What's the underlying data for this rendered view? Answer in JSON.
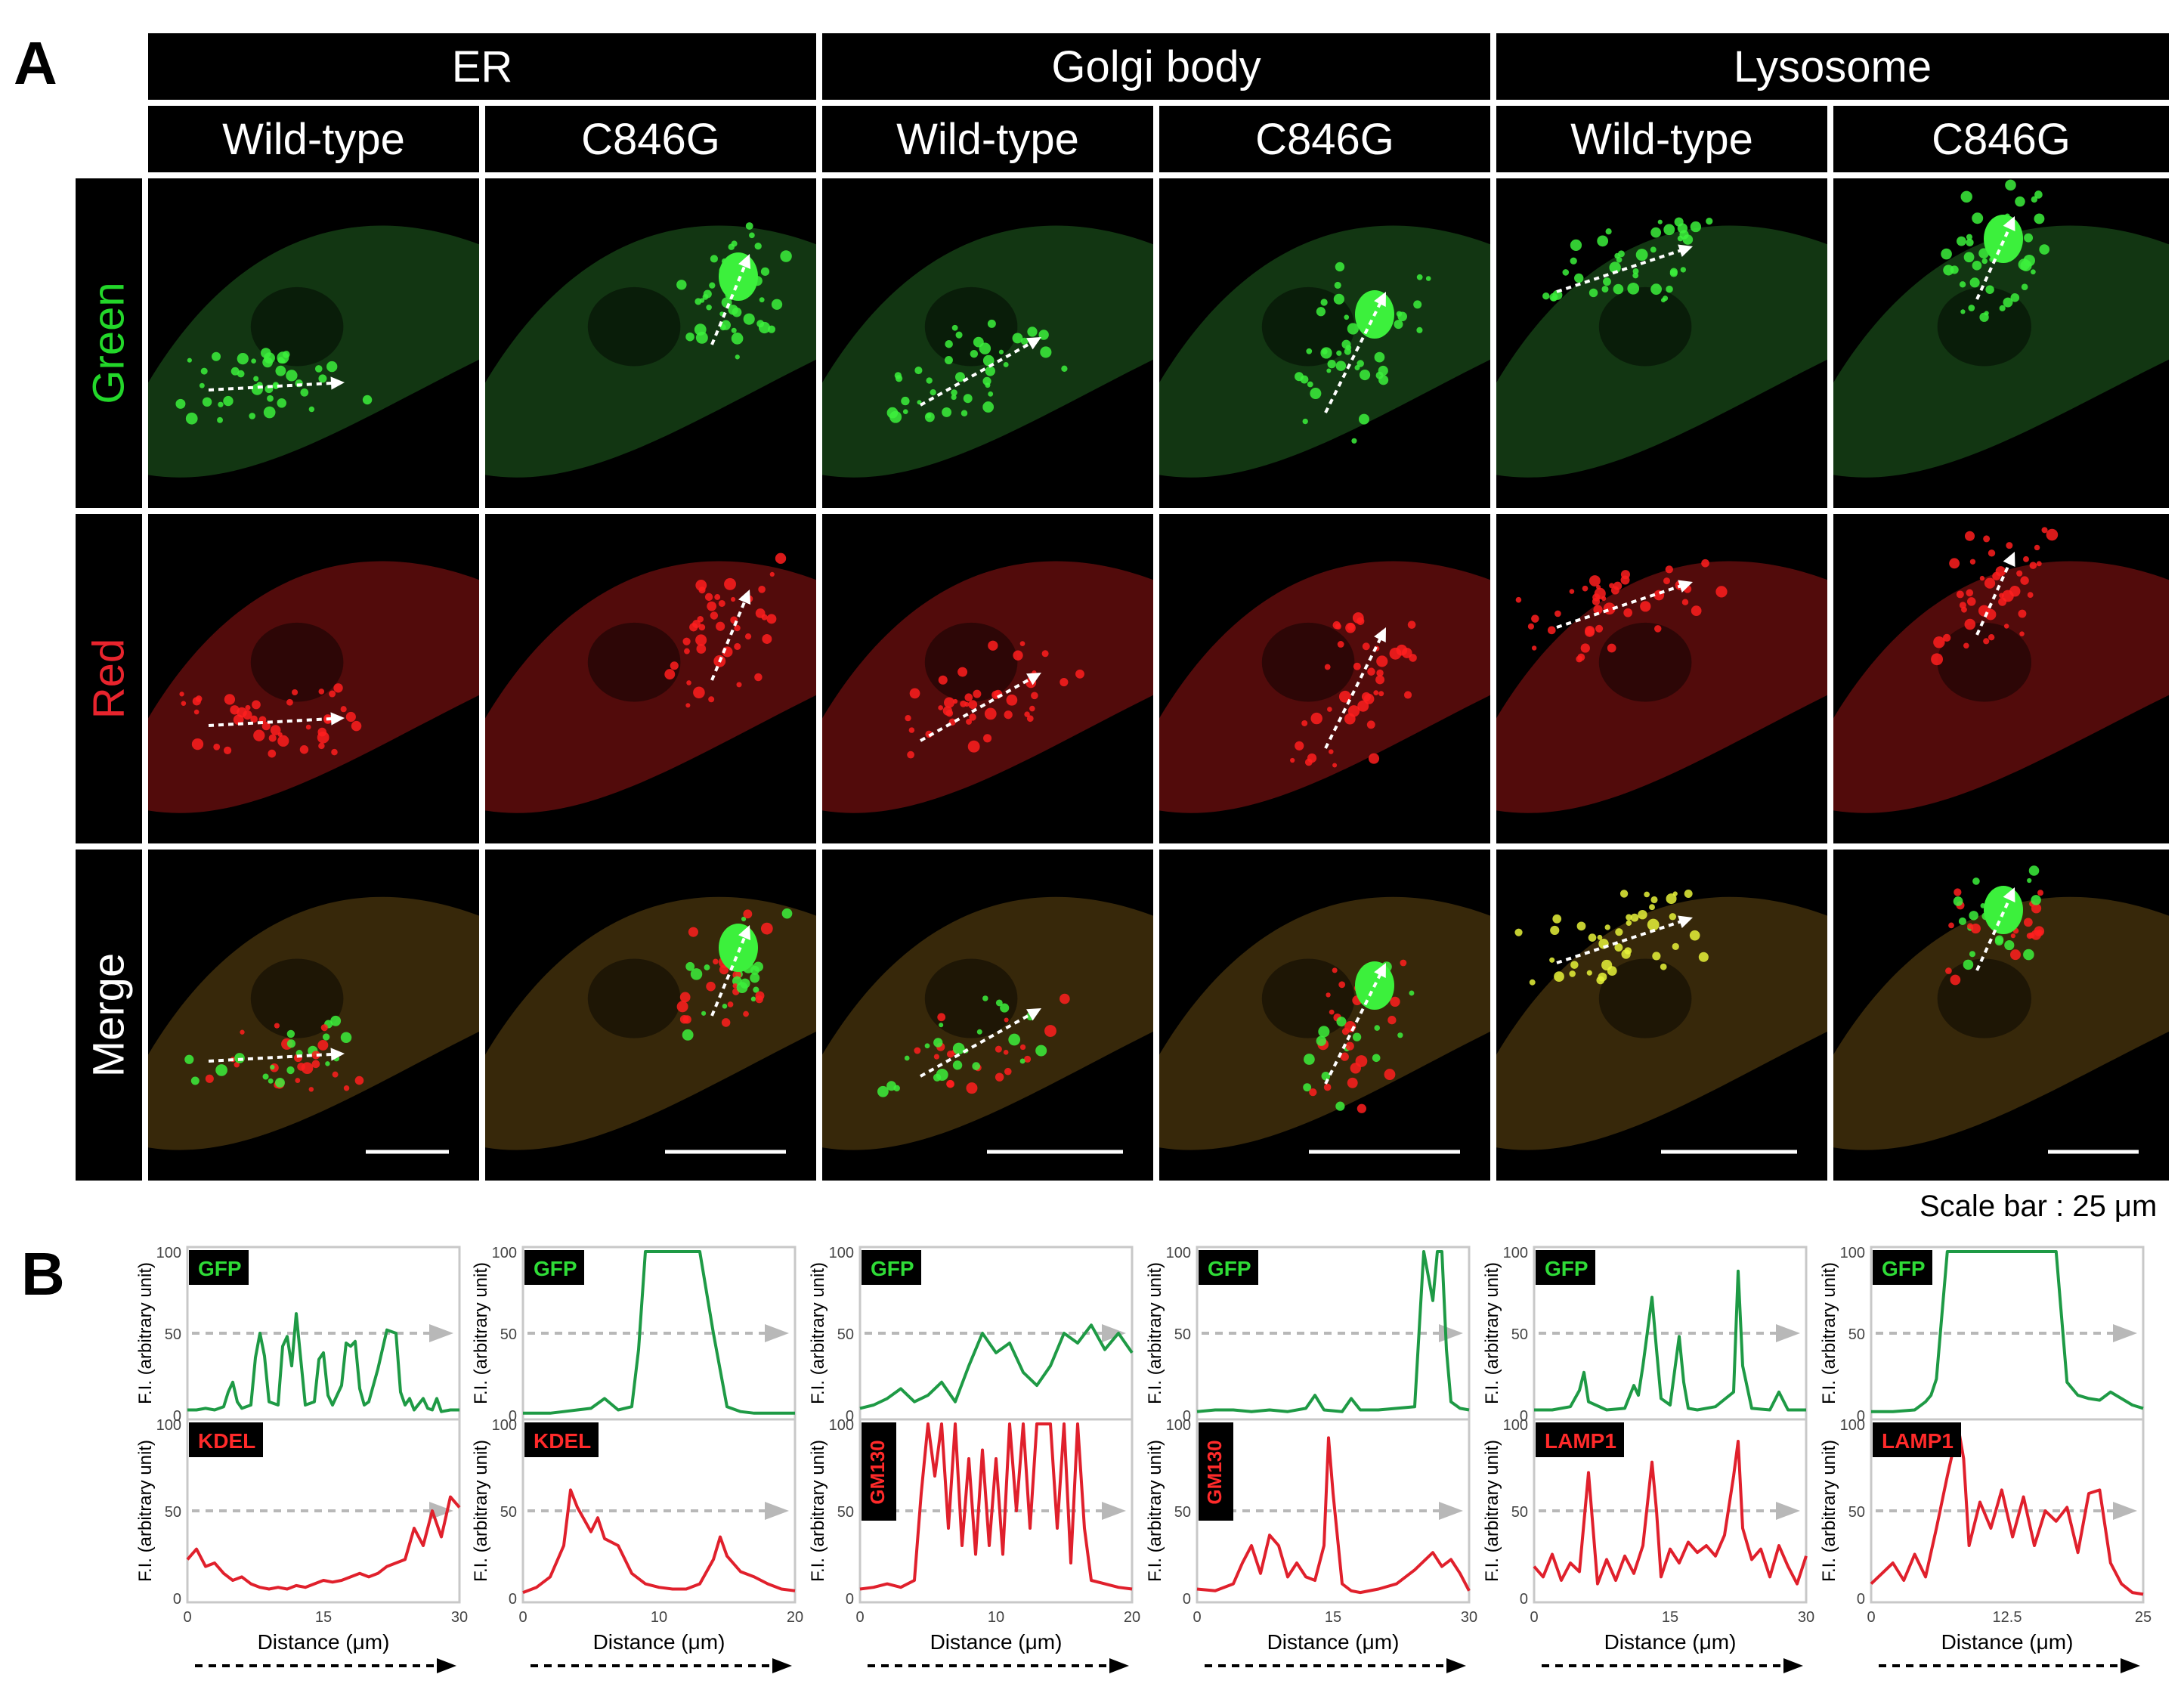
{
  "figure": {
    "panel_a_label": "A",
    "panel_b_label": "B",
    "scale_bar_text": "Scale bar : 25 μm"
  },
  "organelles": [
    "ER",
    "Golgi body",
    "Lysosome"
  ],
  "conditions": [
    "Wild-type",
    "C846G",
    "Wild-type",
    "C846G",
    "Wild-type",
    "C846G"
  ],
  "rows": [
    {
      "label": "Green",
      "color": "#23d72a"
    },
    {
      "label": "Red",
      "color": "#e8242d"
    },
    {
      "label": "Merge",
      "color": "#ffffff"
    }
  ],
  "colors": {
    "green_trace": "#1e9a45",
    "red_trace": "#e0202c",
    "guide_line": "#b8b8b8",
    "frame": "#c8c8c8",
    "gfp_signal": "#3cf03c",
    "red_signal": "#ff1e1e",
    "coloc_signal": "#e6f23a"
  },
  "chart_data": [
    {
      "type": "line",
      "organelle": "ER",
      "condition": "Wild-type",
      "green_tag": "GFP",
      "red_tag": "KDEL",
      "ylabel": "F.I. (arbitrary unit)",
      "xlabel": "Distance (μm)",
      "xlim": [
        0,
        30
      ],
      "ylim": [
        0,
        100
      ],
      "xticks": [
        "0",
        "15",
        "30"
      ],
      "yticks": [
        "0",
        "50",
        "100"
      ],
      "series": [
        {
          "name": "GFP",
          "x": [
            0,
            1,
            2,
            3,
            4,
            4.5,
            5,
            5.5,
            6,
            7,
            7.5,
            8,
            8.5,
            9,
            10,
            10.5,
            11,
            11.5,
            12,
            13,
            14,
            14.5,
            15,
            15.5,
            16,
            17,
            17.5,
            18,
            18.5,
            19,
            19.5,
            20,
            21,
            22,
            23,
            23.5,
            24,
            24.5,
            25,
            26,
            26.5,
            27,
            27.5,
            28,
            29,
            30
          ],
          "values": [
            3,
            3,
            4,
            3,
            5,
            14,
            20,
            8,
            4,
            6,
            35,
            50,
            36,
            8,
            6,
            42,
            48,
            30,
            62,
            6,
            8,
            34,
            38,
            12,
            6,
            18,
            44,
            42,
            45,
            16,
            6,
            8,
            28,
            52,
            50,
            14,
            6,
            10,
            3,
            10,
            4,
            3,
            10,
            2,
            3,
            3
          ]
        },
        {
          "name": "KDEL",
          "x": [
            0,
            1,
            2,
            3,
            4,
            5,
            6,
            7,
            8,
            9,
            10,
            11,
            12,
            13,
            14,
            15,
            16,
            17,
            18,
            19,
            20,
            21,
            22,
            23,
            24,
            25,
            26,
            27,
            28,
            29,
            30
          ],
          "values": [
            22,
            28,
            18,
            20,
            14,
            10,
            12,
            8,
            6,
            5,
            6,
            5,
            7,
            6,
            8,
            10,
            9,
            10,
            12,
            14,
            12,
            14,
            18,
            20,
            22,
            40,
            30,
            50,
            35,
            58,
            52
          ]
        }
      ]
    },
    {
      "type": "line",
      "organelle": "ER",
      "condition": "C846G",
      "green_tag": "GFP",
      "red_tag": "KDEL",
      "ylabel": "F.I. (arbitrary unit)",
      "xlabel": "Distance (μm)",
      "xlim": [
        0,
        20
      ],
      "ylim": [
        0,
        100
      ],
      "xticks": [
        "0",
        "10",
        "20"
      ],
      "yticks": [
        "0",
        "50",
        "100"
      ],
      "series": [
        {
          "name": "GFP",
          "x": [
            0,
            1,
            2,
            3,
            4,
            5,
            6,
            7,
            8,
            8.5,
            9,
            10,
            11,
            12,
            13,
            14,
            15,
            16,
            17,
            18,
            19,
            20
          ],
          "values": [
            1,
            1,
            1,
            2,
            3,
            4,
            10,
            3,
            5,
            40,
            100,
            100,
            100,
            100,
            100,
            50,
            5,
            2,
            1,
            1,
            1,
            1
          ]
        },
        {
          "name": "KDEL",
          "x": [
            0,
            1,
            2,
            3,
            3.5,
            4,
            5,
            5.5,
            6,
            7,
            8,
            9,
            10,
            11,
            12,
            13,
            14,
            14.5,
            15,
            16,
            17,
            18,
            19,
            20
          ],
          "values": [
            3,
            6,
            12,
            30,
            62,
            52,
            38,
            46,
            34,
            30,
            14,
            8,
            6,
            5,
            5,
            8,
            22,
            35,
            24,
            15,
            12,
            8,
            5,
            4
          ]
        }
      ]
    },
    {
      "type": "line",
      "organelle": "Golgi body",
      "condition": "Wild-type",
      "green_tag": "GFP",
      "red_tag": "GM130",
      "ylabel": "F.I. (arbitrary unit)",
      "xlabel": "Distance (μm)",
      "xlim": [
        0,
        20
      ],
      "ylim": [
        0,
        100
      ],
      "xticks": [
        "0",
        "10",
        "20"
      ],
      "yticks": [
        "0",
        "50",
        "100"
      ],
      "series": [
        {
          "name": "GFP",
          "x": [
            0,
            1,
            2,
            3,
            4,
            5,
            6,
            7,
            8,
            9,
            10,
            11,
            12,
            13,
            14,
            15,
            16,
            17,
            18,
            19,
            20
          ],
          "values": [
            4,
            6,
            10,
            16,
            8,
            12,
            20,
            8,
            30,
            50,
            38,
            44,
            26,
            18,
            30,
            50,
            44,
            55,
            40,
            50,
            38
          ]
        },
        {
          "name": "GM130",
          "x": [
            0,
            1,
            2,
            3,
            4,
            4.5,
            5,
            5.5,
            6,
            6.5,
            7,
            7.5,
            8,
            8.5,
            9,
            9.5,
            10,
            10.5,
            11,
            11.5,
            12,
            12.5,
            13,
            13.5,
            14,
            14.5,
            15,
            15.5,
            16,
            16.5,
            17,
            18,
            19,
            20
          ],
          "values": [
            5,
            6,
            8,
            6,
            10,
            60,
            100,
            70,
            100,
            40,
            100,
            30,
            80,
            25,
            85,
            30,
            80,
            25,
            100,
            50,
            100,
            40,
            100,
            100,
            100,
            40,
            100,
            20,
            100,
            40,
            10,
            8,
            6,
            5
          ]
        }
      ]
    },
    {
      "type": "line",
      "organelle": "Golgi body",
      "condition": "C846G",
      "green_tag": "GFP",
      "red_tag": "GM130",
      "ylabel": "F.I. (arbitrary unit)",
      "xlabel": "Distance (μm)",
      "xlim": [
        0,
        30
      ],
      "ylim": [
        0,
        100
      ],
      "xticks": [
        "0",
        "15",
        "30"
      ],
      "yticks": [
        "0",
        "50",
        "100"
      ],
      "series": [
        {
          "name": "GFP",
          "x": [
            0,
            2,
            4,
            6,
            8,
            10,
            12,
            13,
            14,
            16,
            17,
            18,
            20,
            22,
            24,
            25,
            26,
            26.5,
            27,
            27.5,
            28,
            29,
            30
          ],
          "values": [
            2,
            3,
            3,
            2,
            3,
            2,
            4,
            12,
            3,
            2,
            10,
            3,
            3,
            4,
            5,
            100,
            70,
            100,
            100,
            40,
            8,
            4,
            3
          ]
        },
        {
          "name": "GM130",
          "x": [
            0,
            2,
            4,
            5,
            6,
            7,
            8,
            9,
            10,
            11,
            12,
            13,
            14,
            14.5,
            15,
            16,
            17,
            18,
            20,
            22,
            24,
            26,
            27,
            28,
            29,
            30
          ],
          "values": [
            5,
            4,
            8,
            20,
            30,
            14,
            36,
            30,
            12,
            20,
            12,
            10,
            30,
            92,
            60,
            8,
            4,
            3,
            5,
            8,
            16,
            26,
            18,
            22,
            14,
            4
          ]
        }
      ]
    },
    {
      "type": "line",
      "organelle": "Lysosome",
      "condition": "Wild-type",
      "green_tag": "GFP",
      "red_tag": "LAMP1",
      "ylabel": "F.I. (arbitrary unit)",
      "xlabel": "Distance (μm)",
      "xlim": [
        0,
        30
      ],
      "ylim": [
        0,
        100
      ],
      "xticks": [
        "0",
        "15",
        "30"
      ],
      "yticks": [
        "0",
        "50",
        "100"
      ],
      "series": [
        {
          "name": "GFP",
          "x": [
            0,
            2,
            4,
            5,
            5.5,
            6,
            8,
            10,
            11,
            11.5,
            12,
            13,
            13.5,
            14,
            15,
            16,
            16.5,
            17,
            18,
            20,
            22,
            22.5,
            23,
            24,
            26,
            27,
            28,
            30
          ],
          "values": [
            3,
            3,
            5,
            15,
            26,
            8,
            3,
            4,
            18,
            12,
            30,
            72,
            40,
            10,
            6,
            48,
            20,
            4,
            3,
            5,
            14,
            88,
            30,
            4,
            3,
            14,
            3,
            3
          ]
        },
        {
          "name": "LAMP1",
          "x": [
            0,
            1,
            2,
            3,
            4,
            5,
            6,
            6.5,
            7,
            8,
            9,
            10,
            11,
            12,
            13,
            13.5,
            14,
            15,
            16,
            17,
            18,
            19,
            20,
            21,
            22,
            22.5,
            23,
            24,
            25,
            26,
            27,
            28,
            29,
            30
          ],
          "values": [
            18,
            12,
            25,
            10,
            20,
            15,
            72,
            40,
            8,
            22,
            10,
            24,
            14,
            30,
            78,
            50,
            12,
            28,
            20,
            32,
            26,
            30,
            24,
            36,
            70,
            90,
            40,
            22,
            28,
            12,
            30,
            18,
            8,
            24
          ]
        }
      ]
    },
    {
      "type": "line",
      "organelle": "Lysosome",
      "condition": "C846G",
      "green_tag": "GFP",
      "red_tag": "LAMP1",
      "ylabel": "F.I. (arbitrary unit)",
      "xlabel": "Distance (μm)",
      "xlim": [
        0,
        25
      ],
      "ylim": [
        0,
        100
      ],
      "xticks": [
        "0",
        "12.5",
        "25"
      ],
      "yticks": [
        "0",
        "50",
        "100"
      ],
      "series": [
        {
          "name": "GFP",
          "x": [
            0,
            2,
            4,
            5,
            5.5,
            6,
            7,
            8,
            9,
            10,
            12,
            14,
            15,
            16,
            17,
            17.5,
            18,
            19,
            20,
            21,
            22,
            23,
            24,
            25
          ],
          "values": [
            2,
            2,
            3,
            8,
            12,
            22,
            100,
            100,
            100,
            100,
            100,
            100,
            100,
            100,
            100,
            60,
            20,
            12,
            10,
            9,
            14,
            10,
            6,
            4
          ]
        },
        {
          "name": "LAMP1",
          "x": [
            0,
            1,
            2,
            3,
            4,
            5,
            6,
            7,
            8,
            8.5,
            9,
            10,
            11,
            12,
            13,
            14,
            15,
            16,
            17,
            18,
            19,
            20,
            21,
            22,
            23,
            24,
            25
          ],
          "values": [
            8,
            14,
            20,
            10,
            25,
            12,
            40,
            70,
            98,
            80,
            30,
            55,
            40,
            62,
            35,
            58,
            30,
            50,
            44,
            52,
            26,
            60,
            62,
            20,
            8,
            3,
            2
          ]
        }
      ]
    }
  ]
}
